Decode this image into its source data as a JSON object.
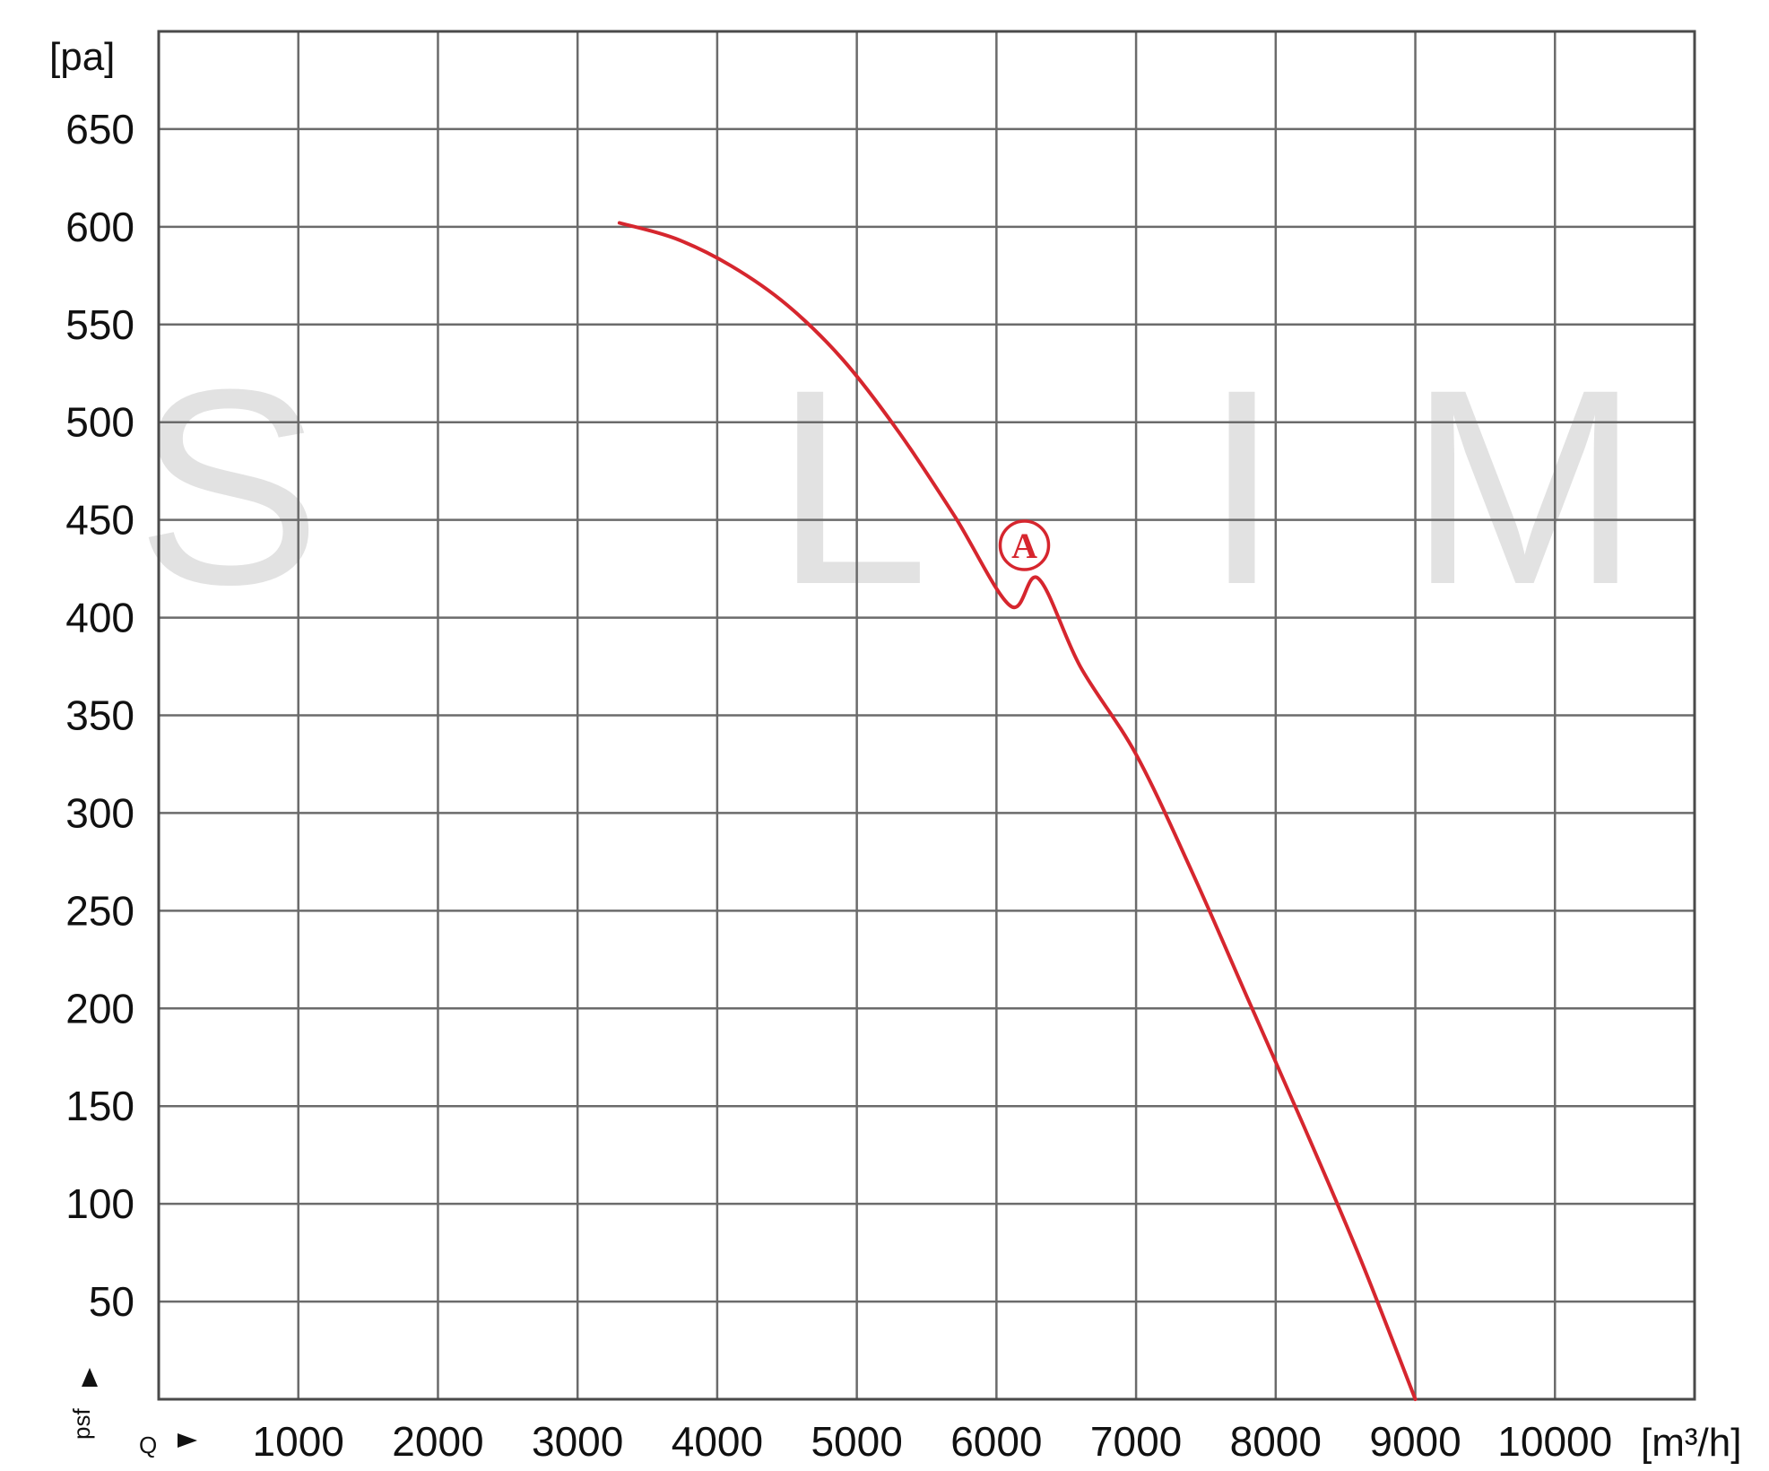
{
  "watermark": {
    "letters": [
      "S",
      "L",
      "I",
      "M"
    ]
  },
  "chart_data": {
    "type": "line",
    "title": "",
    "xlabel": "Q",
    "ylabel": "psf",
    "x_unit": "[m³/h]",
    "y_unit": "[pa]",
    "xlim": [
      0,
      11000
    ],
    "ylim": [
      0,
      700
    ],
    "x_ticks": [
      1000,
      2000,
      3000,
      4000,
      5000,
      6000,
      7000,
      8000,
      9000,
      10000
    ],
    "y_ticks": [
      50,
      100,
      150,
      200,
      250,
      300,
      350,
      400,
      450,
      500,
      550,
      600,
      650
    ],
    "grid": true,
    "series": [
      {
        "color": "#d6262e",
        "x": [
          3300,
          3700,
          4100,
          4500,
          4900,
          5300,
          5700,
          6100,
          6300,
          6600,
          7000,
          7400,
          7800,
          8200,
          8600,
          9000
        ],
        "y": [
          602,
          594,
          580,
          560,
          532,
          495,
          452,
          406,
          420,
          375,
          330,
          270,
          205,
          140,
          73,
          0
        ]
      }
    ],
    "annotations": [
      {
        "label": "A",
        "x": 6200,
        "y": 437,
        "color": "#d6262e"
      }
    ]
  }
}
